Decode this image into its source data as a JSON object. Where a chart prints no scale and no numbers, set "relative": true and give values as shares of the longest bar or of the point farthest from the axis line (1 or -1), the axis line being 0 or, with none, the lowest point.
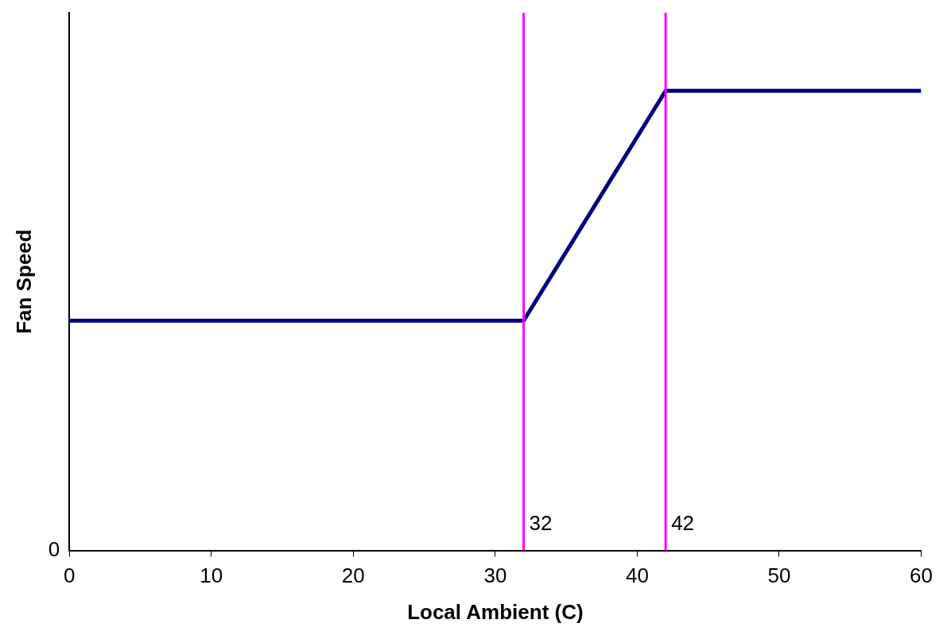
{
  "chart_data": {
    "type": "line",
    "relative": true,
    "xlabel": "Local Ambient (C)",
    "ylabel": "Fan Speed",
    "x": [
      0,
      32,
      42,
      60
    ],
    "series": [
      {
        "color": "#000080",
        "values": [
          0.5,
          0.5,
          1,
          1
        ]
      }
    ],
    "xlim": [
      0,
      60
    ],
    "xticks": [
      0,
      10,
      20,
      30,
      40,
      50,
      60
    ],
    "legend": false,
    "marker": "none",
    "line_style": "solid",
    "annotations": [
      "0"
    ],
    "ref_lines": [
      {
        "axis": "x",
        "value": 32,
        "label": "32",
        "color": "#ff00ff"
      },
      {
        "axis": "x",
        "value": 42,
        "label": "42",
        "color": "#ff00ff"
      }
    ]
  }
}
